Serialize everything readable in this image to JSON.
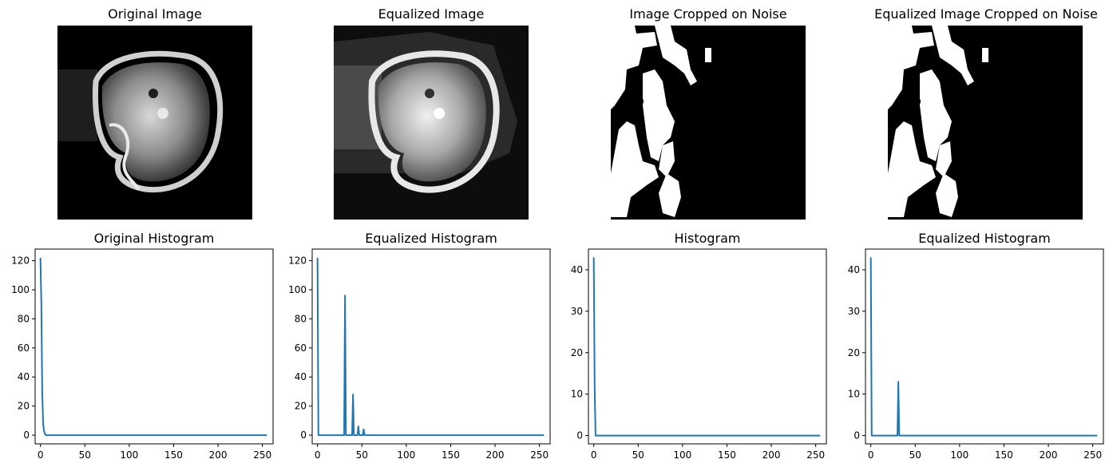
{
  "titles": {
    "original_image": "Original Image",
    "equalized_image": "Equalized Image",
    "cropped_image": "Image Cropped on Noise",
    "cropped_equalized_image": "Equalized Image Cropped on Noise"
  },
  "colors": {
    "line": "#1f77b4",
    "image_bg": "#000000",
    "image_fg": "#ffffff"
  },
  "chart_data": [
    {
      "type": "line",
      "title": "Original Histogram",
      "xlim": [
        -6,
        262
      ],
      "ylim": [
        -6,
        128
      ],
      "xticks": [
        0,
        50,
        100,
        150,
        200,
        250
      ],
      "yticks": [
        0,
        20,
        40,
        60,
        80,
        100,
        120
      ],
      "series": [
        {
          "x": [
            0,
            1,
            2,
            3,
            4,
            5,
            6,
            255
          ],
          "y": [
            122,
            90,
            30,
            8,
            3,
            1,
            0,
            0
          ]
        }
      ]
    },
    {
      "type": "line",
      "title": "Equalized Histogram",
      "xlim": [
        -6,
        262
      ],
      "ylim": [
        -6,
        128
      ],
      "xticks": [
        0,
        50,
        100,
        150,
        200,
        250
      ],
      "yticks": [
        0,
        20,
        40,
        60,
        80,
        100,
        120
      ],
      "series": [
        {
          "x": [
            0,
            1,
            2,
            30,
            31,
            32,
            39,
            40,
            41,
            45,
            46,
            47,
            51,
            52,
            53,
            255
          ],
          "y": [
            122,
            0,
            0,
            0,
            96,
            0,
            0,
            28,
            0,
            0,
            6,
            0,
            0,
            4,
            0,
            0
          ]
        }
      ]
    },
    {
      "type": "line",
      "title": "Histogram",
      "xlim": [
        -6,
        262
      ],
      "ylim": [
        -2,
        45
      ],
      "xticks": [
        0,
        50,
        100,
        150,
        200,
        250
      ],
      "yticks": [
        0,
        10,
        20,
        30,
        40
      ],
      "series": [
        {
          "x": [
            0,
            1,
            2,
            255
          ],
          "y": [
            43,
            12,
            0,
            0
          ]
        }
      ]
    },
    {
      "type": "line",
      "title": "Equalized Histogram",
      "xlim": [
        -6,
        262
      ],
      "ylim": [
        -2,
        45
      ],
      "xticks": [
        0,
        50,
        100,
        150,
        200,
        250
      ],
      "yticks": [
        0,
        10,
        20,
        30,
        40
      ],
      "series": [
        {
          "x": [
            0,
            1,
            2,
            30,
            31,
            32,
            255
          ],
          "y": [
            43,
            0,
            0,
            0,
            13,
            0,
            0
          ]
        }
      ]
    }
  ]
}
